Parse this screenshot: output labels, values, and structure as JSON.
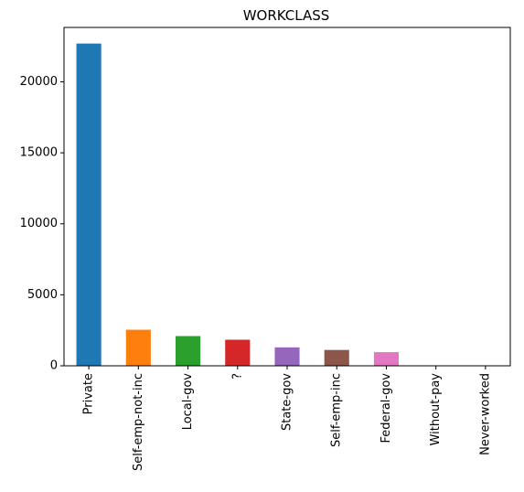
{
  "chart_data": {
    "type": "bar",
    "title": "WORKCLASS",
    "xlabel": "",
    "ylabel": "",
    "categories": [
      "Private",
      "Self-emp-not-inc",
      "Local-gov",
      "?",
      "State-gov",
      "Self-emp-inc",
      "Federal-gov",
      "Without-pay",
      "Never-worked"
    ],
    "values": [
      22696,
      2541,
      2093,
      1836,
      1298,
      1116,
      960,
      14,
      7
    ],
    "colors": [
      "#1f77b4",
      "#ff7f0e",
      "#2ca02c",
      "#d62728",
      "#9467bd",
      "#8c564b",
      "#e377c2",
      "#7f7f7f",
      "#bcbd22"
    ],
    "ylim": [
      0,
      23831
    ],
    "yticks": [
      0,
      5000,
      10000,
      15000,
      20000
    ],
    "grid": false,
    "legend": "none"
  }
}
